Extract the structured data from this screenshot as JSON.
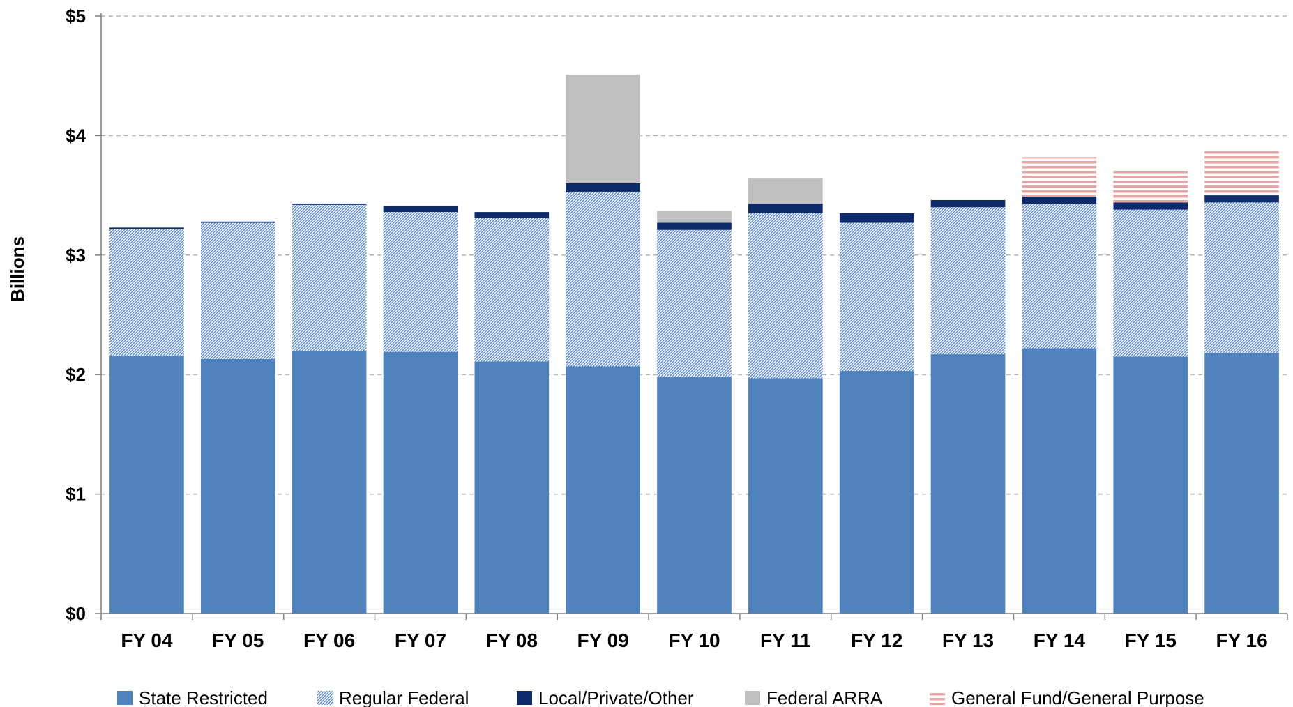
{
  "chart_data": {
    "type": "bar",
    "stacked": true,
    "title": "",
    "xlabel": "",
    "ylabel": "Billions",
    "ylim": [
      0,
      5
    ],
    "yticks": [
      {
        "value": 0,
        "label": "$0"
      },
      {
        "value": 1,
        "label": "$1"
      },
      {
        "value": 2,
        "label": "$2"
      },
      {
        "value": 3,
        "label": "$3"
      },
      {
        "value": 4,
        "label": "$4"
      },
      {
        "value": 5,
        "label": "$5"
      }
    ],
    "grid": true,
    "legend_position": "bottom",
    "categories": [
      "FY 04",
      "FY 05",
      "FY 06",
      "FY 07",
      "FY 08",
      "FY 09",
      "FY 10",
      "FY 11",
      "FY 12",
      "FY 13",
      "FY 14",
      "FY 15",
      "FY 16"
    ],
    "series": [
      {
        "name": "State Restricted",
        "color": "#4f81bd",
        "pattern": "solid",
        "values": [
          2.16,
          2.13,
          2.2,
          2.19,
          2.11,
          2.07,
          1.98,
          1.97,
          2.03,
          2.17,
          2.22,
          2.15,
          2.18
        ]
      },
      {
        "name": "Regular Federal",
        "color": "#4f81bd",
        "pattern": "diagonal-hatch",
        "values": [
          1.06,
          1.14,
          1.22,
          1.17,
          1.2,
          1.46,
          1.23,
          1.38,
          1.24,
          1.23,
          1.21,
          1.23,
          1.26
        ]
      },
      {
        "name": "Local/Private/Other",
        "color": "#0d2a6b",
        "pattern": "solid",
        "values": [
          0.01,
          0.01,
          0.01,
          0.05,
          0.05,
          0.07,
          0.06,
          0.08,
          0.08,
          0.06,
          0.06,
          0.06,
          0.06
        ]
      },
      {
        "name": "Federal ARRA",
        "color": "#bfbfbf",
        "pattern": "solid",
        "values": [
          0,
          0,
          0,
          0,
          0,
          0.91,
          0.1,
          0.21,
          0,
          0,
          0,
          0,
          0
        ]
      },
      {
        "name": "General Fund/General Purpose",
        "color": "#e6a5a5",
        "pattern": "horizontal-stripes",
        "values": [
          0,
          0,
          0,
          0,
          0,
          0,
          0,
          0,
          0,
          0,
          0.33,
          0.28,
          0.37
        ]
      }
    ]
  }
}
